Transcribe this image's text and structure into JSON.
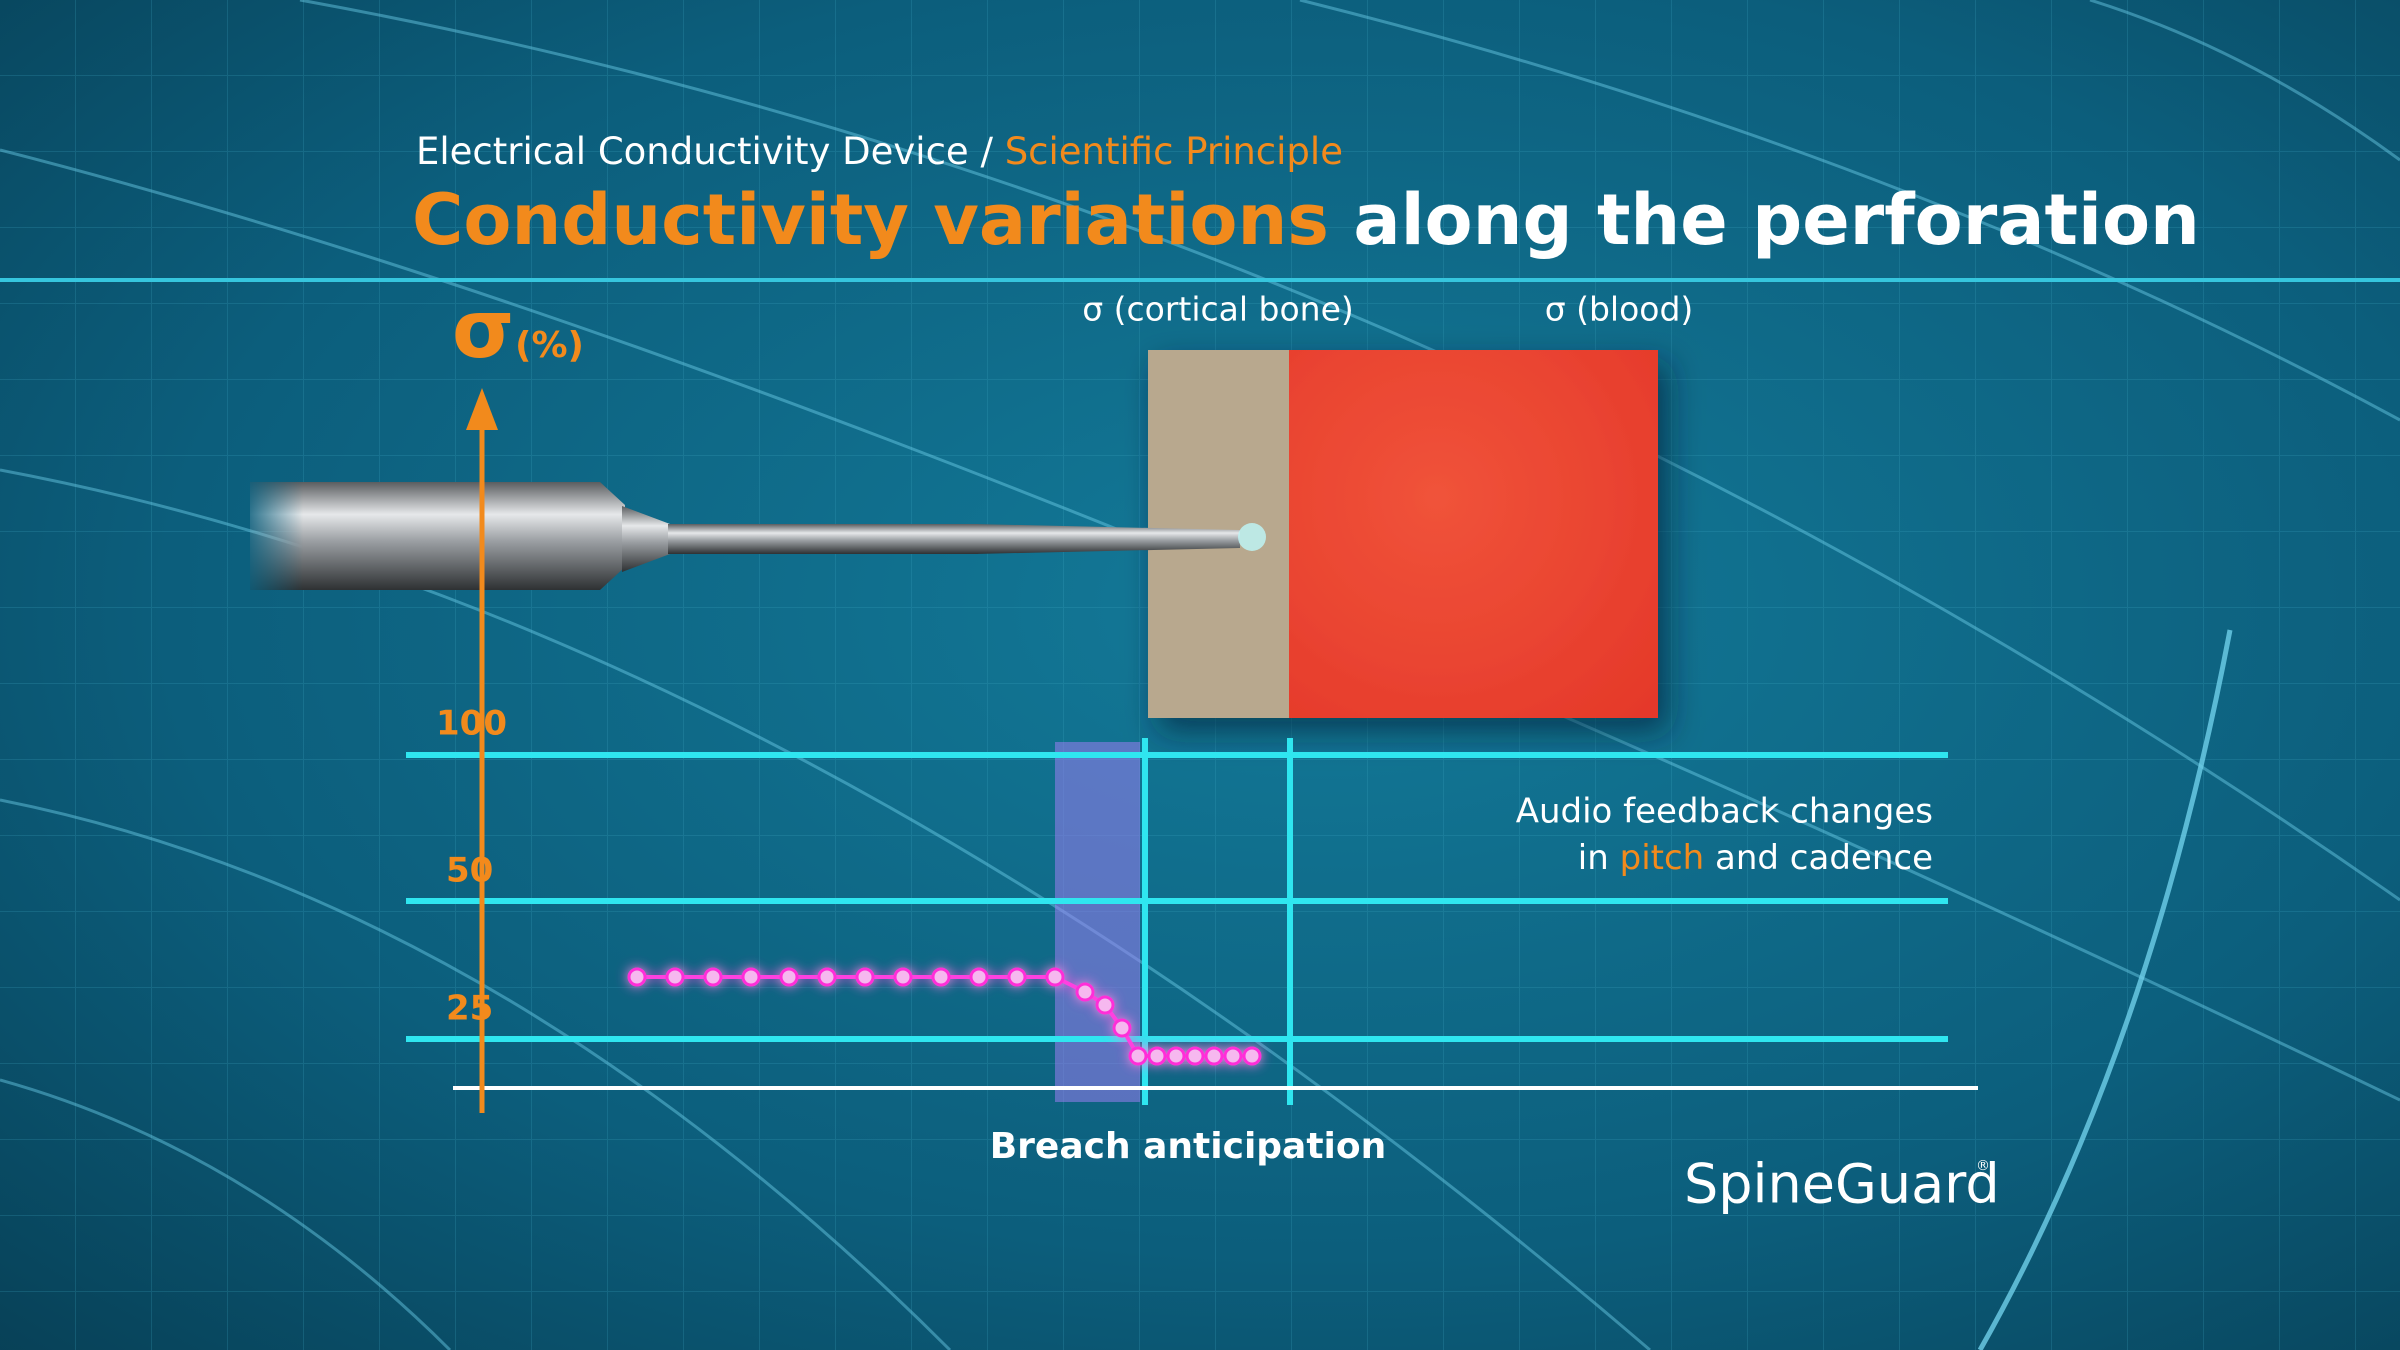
{
  "header": {
    "breadcrumb": "Electrical Conductivity Device",
    "separator": "/",
    "section": "Scientific Principle"
  },
  "title": {
    "highlight": "Conductivity variations",
    "rest": "along the perforation"
  },
  "axis": {
    "symbol": "σ",
    "unit": "(%)",
    "ticks": [
      100,
      50,
      25
    ]
  },
  "labels": {
    "cortical_bone": "σ (cortical bone)",
    "blood": "σ (blood)"
  },
  "annotation": {
    "line1": "Audio feedback changes",
    "line2_prefix": "in",
    "line2_highlight": "pitch",
    "line2_suffix": "and cadence"
  },
  "caption": "Breach anticipation",
  "logo": {
    "text": "SpineGuard",
    "mark": "®"
  }
}
